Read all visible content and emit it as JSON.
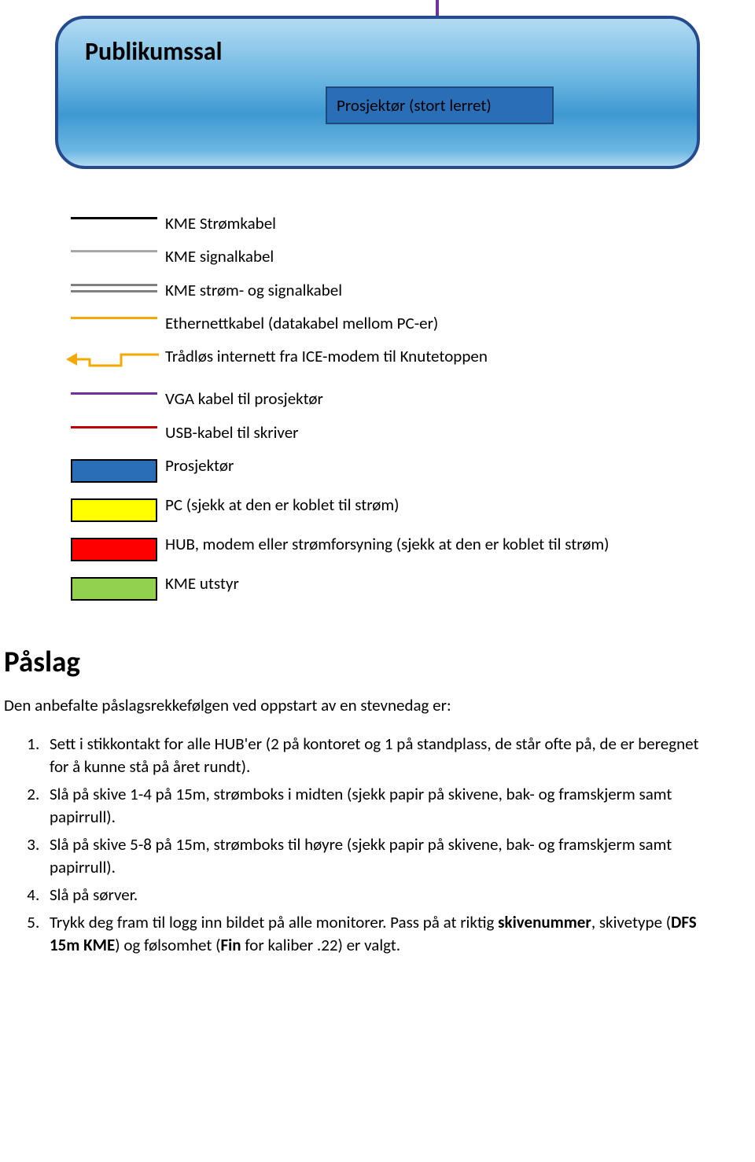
{
  "antenna": {
    "color": "#7030a0"
  },
  "hall": {
    "title": "Publikumssal",
    "border_color": "#254b8e",
    "gradient_top": "#b3dbf2",
    "gradient_mid": "#3d99d1",
    "projector_box_label": "Prosjektør (stort lerret)",
    "projector_box_bg": "#2a6eb8",
    "projector_box_border": "#1f4979"
  },
  "legend": [
    {
      "type": "line",
      "color": "#000000",
      "thickness": 3,
      "label": "KME Strømkabel"
    },
    {
      "type": "line",
      "color": "#a6a6a6",
      "thickness": 3,
      "label": "KME signalkabel"
    },
    {
      "type": "double-line",
      "color_top": "#808080",
      "color_bottom": "#808080",
      "thickness": 3,
      "label": "KME strøm- og signalkabel"
    },
    {
      "type": "line",
      "color": "#f2a900",
      "thickness": 3,
      "label": "Ethernettkabel (datakabel mellom PC-er)"
    },
    {
      "type": "arrow",
      "color": "#f2a900",
      "thickness": 3,
      "label": "Trådløs internett fra ICE-modem til Knutetoppen"
    },
    {
      "type": "line",
      "color": "#7030a0",
      "thickness": 3,
      "label": "VGA kabel til prosjektør"
    },
    {
      "type": "line",
      "color": "#c00000",
      "thickness": 3,
      "label": "USB-kabel til skriver"
    },
    {
      "type": "rect",
      "fill": "#2a6eb8",
      "label": "Prosjektør"
    },
    {
      "type": "rect",
      "fill": "#ffff00",
      "label": "PC (sjekk at den er koblet til strøm)"
    },
    {
      "type": "rect",
      "fill": "#ff0000",
      "label": "HUB, modem eller strømforsyning (sjekk at den er koblet til strøm)"
    },
    {
      "type": "rect",
      "fill": "#92d050",
      "label": "KME utstyr"
    }
  ],
  "section": {
    "heading": "Påslag",
    "intro": "Den anbefalte påslagsrekkefølgen ved oppstart av en stevnedag er:",
    "steps": [
      {
        "text_before": "Sett i stikkontakt for alle HUB'er (2 på kontoret og 1 på standplass, de står ofte på, de er beregnet for å kunne stå på året rundt)."
      },
      {
        "text_before": "Slå på skive 1-4 på 15m, strømboks i midten (sjekk papir på skivene, bak- og framskjerm samt papirrull)."
      },
      {
        "text_before": "Slå på skive 5-8 på 15m, strømboks til høyre (sjekk papir på skivene, bak- og framskjerm samt papirrull)."
      },
      {
        "text_before": "Slå på sørver."
      },
      {
        "text_before": "Trykk deg fram til logg inn bildet på alle monitorer. Pass på at riktig ",
        "bold1": "skivenummer",
        "mid1": ", skivetype (",
        "bold2": "DFS 15m KME",
        "mid2": ") og følsomhet (",
        "bold3": "Fin",
        "mid3": " for kaliber .22) er valgt."
      }
    ]
  }
}
